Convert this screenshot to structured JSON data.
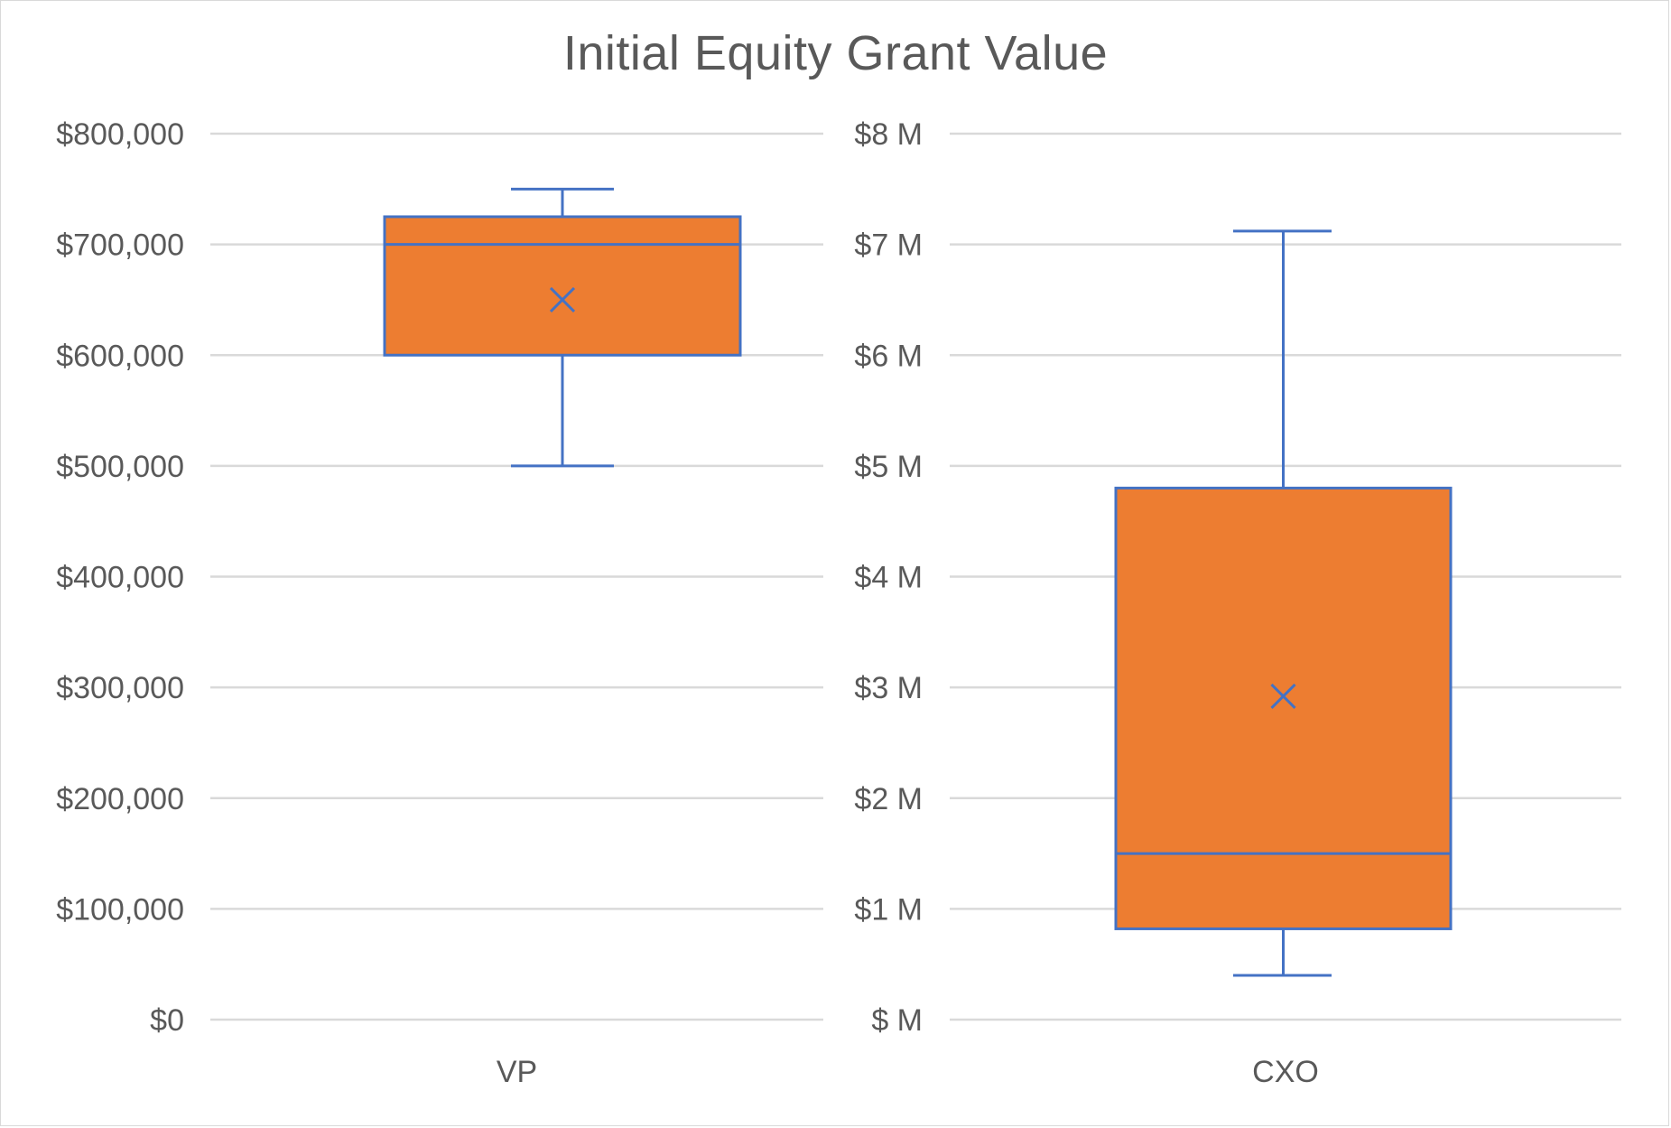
{
  "title": "Initial Equity Grant Value",
  "colors": {
    "box_fill": "#ED7D31",
    "box_stroke": "#4472C4",
    "grid": "#d9d9d9",
    "text": "#595959"
  },
  "chart_data": [
    {
      "type": "box",
      "category": "VP",
      "ylim": [
        0,
        800000
      ],
      "y_ticks": [
        "$0",
        "$100,000",
        "$200,000",
        "$300,000",
        "$400,000",
        "$500,000",
        "$600,000",
        "$700,000",
        "$800,000"
      ],
      "grid": true,
      "min": 500000,
      "q1": 600000,
      "median": 700000,
      "q3": 725000,
      "max": 750000,
      "mean": 650000
    },
    {
      "type": "box",
      "category": "CXO",
      "ylim": [
        0,
        8000000
      ],
      "y_ticks": [
        "$ M",
        "$1 M",
        "$2 M",
        "$3 M",
        "$4 M",
        "$5 M",
        "$6 M",
        "$7 M",
        "$8 M"
      ],
      "grid": true,
      "min": 400000,
      "q1": 820000,
      "median": 1500000,
      "q3": 4800000,
      "max": 7120000,
      "mean": 2920000
    }
  ]
}
